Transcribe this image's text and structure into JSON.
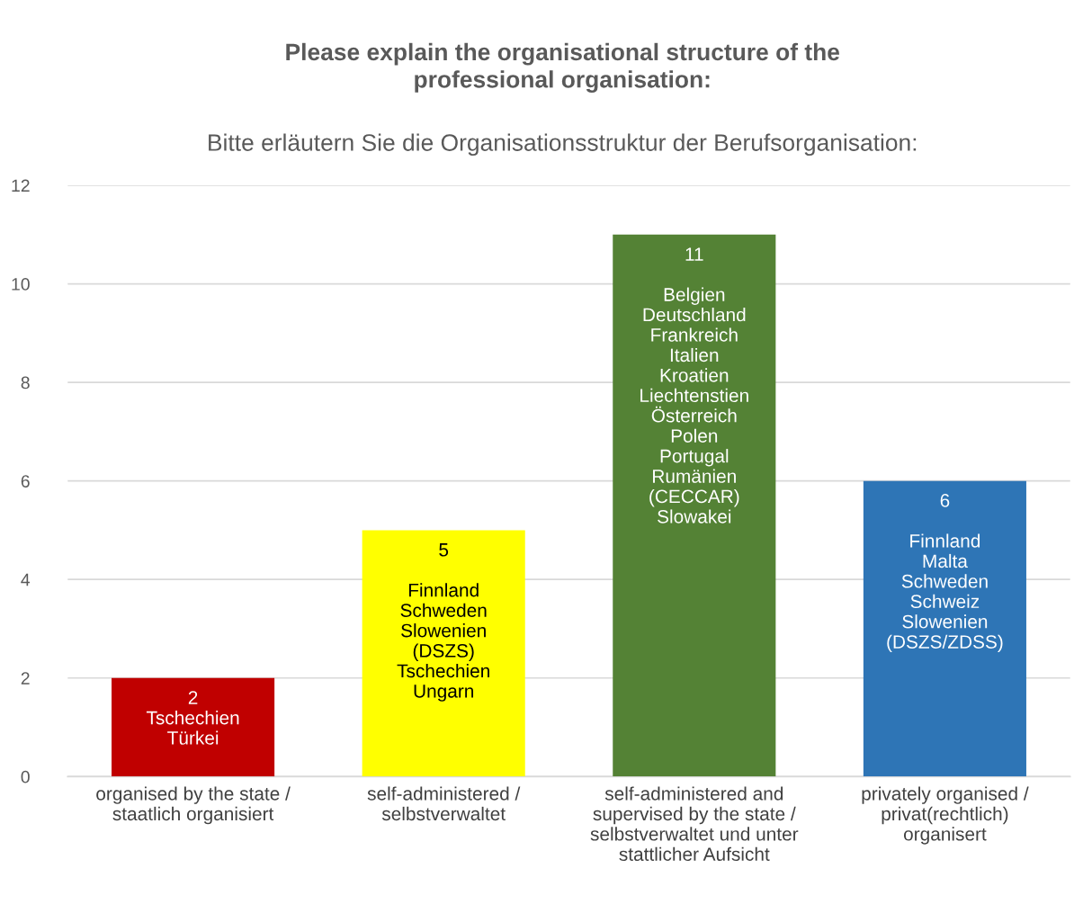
{
  "chart_data": {
    "type": "bar",
    "title": "Please explain the organisational structure of the\nprofessional organisation:",
    "subtitle": "Bitte erläutern Sie die Organisationsstruktur der Berufsorganisation:",
    "categories": [
      "organised by the state /\nstaatlich organisiert",
      "self-administered /\nselbstverwaltet",
      "self-administered and\nsupervised by the state /\nselbstverwaltet und unter\nstattlicher Aufsicht",
      "privately organised /\nprivat(rechtlich)\norganisert"
    ],
    "values": [
      2,
      5,
      11,
      6
    ],
    "colors": [
      "#c00000",
      "#ffff00",
      "#548235",
      "#2e75b6"
    ],
    "value_labels": [
      "2\nTschechien\nTürkei",
      "5\n\nFinnland\nSchweden\nSlowenien\n(DSZS)\nTschechien\nUngarn",
      "11\n\nBelgien\nDeutschland\nFrankreich\nItalien\nKroatien\nLiechtenstien\nÖsterreich\nPolen\nPortugal\nRumänien\n(CECCAR)\nSlowakei",
      "6\n\nFinnland\nMalta\nSchweden\nSchweiz\nSlowenien\n(DSZS/ZDSS)"
    ],
    "ylim": [
      0,
      12
    ],
    "yticks": [
      0,
      2,
      4,
      6,
      8,
      10,
      12
    ],
    "grid": "y",
    "legend": false
  }
}
